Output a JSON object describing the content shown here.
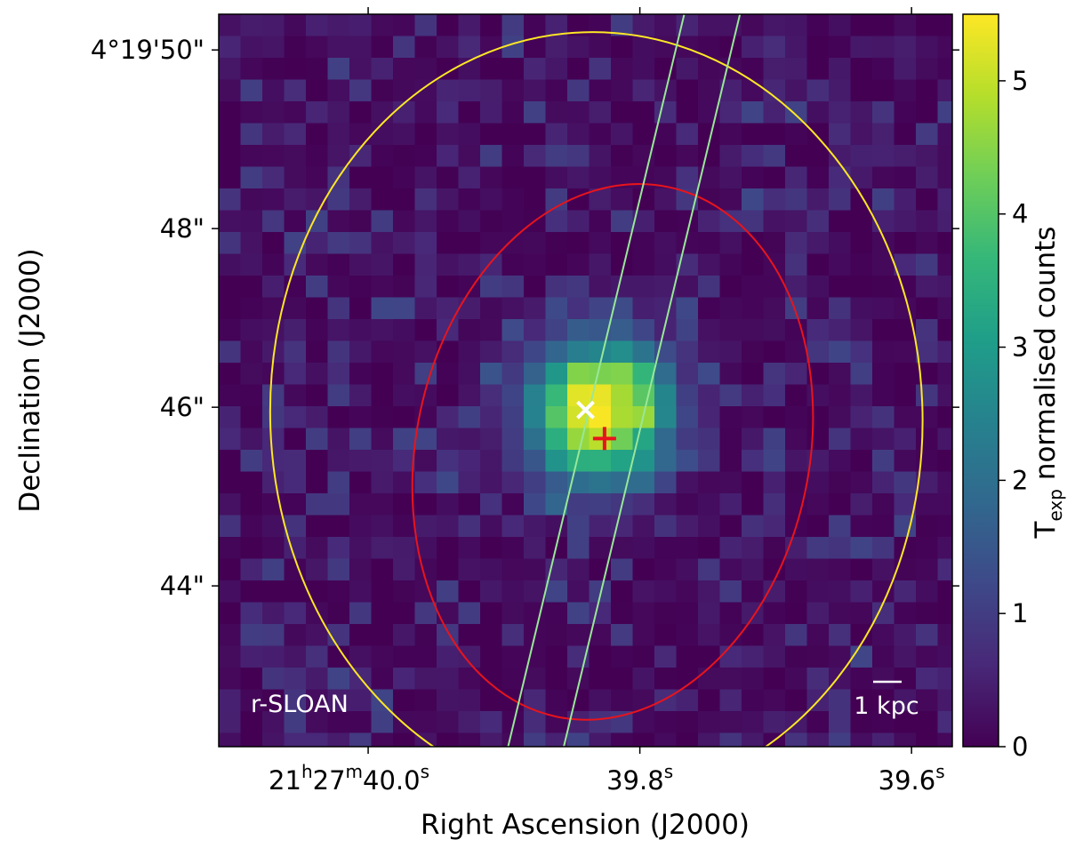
{
  "chart_data": {
    "type": "heatmap",
    "image": {
      "filter_label": "r-SLOAN",
      "scale_bar_label": "1 kpc",
      "colormap": "viridis",
      "colormap_stops": [
        "#440154",
        "#482878",
        "#3e4989",
        "#31688e",
        "#26828e",
        "#1f9e89",
        "#35b779",
        "#6ece58",
        "#b5de2b",
        "#fde725"
      ],
      "source": {
        "ra_s": 39.83,
        "dec_s": 45.95,
        "peak_counts": 5.5,
        "sigma_arcsec": 0.55,
        "noise_max": 1.1
      }
    },
    "x_axis": {
      "label": "Right Ascension (J2000)",
      "unit": "seconds of RA (21h27m)",
      "range": [
        40.11,
        39.57
      ],
      "ticks": [
        {
          "value": 40.0,
          "main": "21",
          "sup1": "h",
          "mid": "27",
          "sup2": "m",
          "sec": "40.0",
          "sup3": "s"
        },
        {
          "value": 39.8,
          "main": "39.8",
          "sup3": "s"
        },
        {
          "value": 39.6,
          "main": "39.6",
          "sup3": "s"
        }
      ]
    },
    "y_axis": {
      "label": "Declination (J2000)",
      "unit": "arcsec (4°19')",
      "range": [
        42.2,
        50.4
      ],
      "ticks": [
        {
          "value": 50,
          "label": "4°19'50\""
        },
        {
          "value": 48,
          "label": "48\""
        },
        {
          "value": 46,
          "label": "46\""
        },
        {
          "value": 44,
          "label": "44\""
        }
      ]
    },
    "colorbar": {
      "label_main": "T",
      "label_sub": "exp",
      "label_rest": " normalised counts",
      "range": [
        0,
        5.5
      ],
      "ticks": [
        0,
        1,
        2,
        3,
        4,
        5
      ]
    },
    "overlays": {
      "ellipses": [
        {
          "name": "yellow-aperture",
          "color": "#fde725",
          "center": [
            39.832,
            45.9
          ],
          "semi_axes_arcsec": [
            4.3,
            3.65
          ],
          "angle_deg": -2
        },
        {
          "name": "red-aperture",
          "color": "#e8141c",
          "center": [
            39.82,
            45.5
          ],
          "semi_axes_arcsec": [
            3.03,
            2.2
          ],
          "angle_deg": 12
        }
      ],
      "slit_lines": [
        {
          "color": "#98e898",
          "points": [
            [
              39.767,
              50.42
            ],
            [
              39.897,
              42.2
            ]
          ]
        },
        {
          "color": "#98e898",
          "points": [
            [
              39.726,
              50.42
            ],
            [
              39.856,
              42.2
            ]
          ]
        }
      ],
      "markers": [
        {
          "name": "white-cross",
          "symbol": "x",
          "color": "#ffffff",
          "ra_s": 39.84,
          "dec_s": 45.97
        },
        {
          "name": "red-plus",
          "symbol": "+",
          "color": "#e8141c",
          "ra_s": 39.826,
          "dec_s": 45.65
        }
      ]
    }
  }
}
